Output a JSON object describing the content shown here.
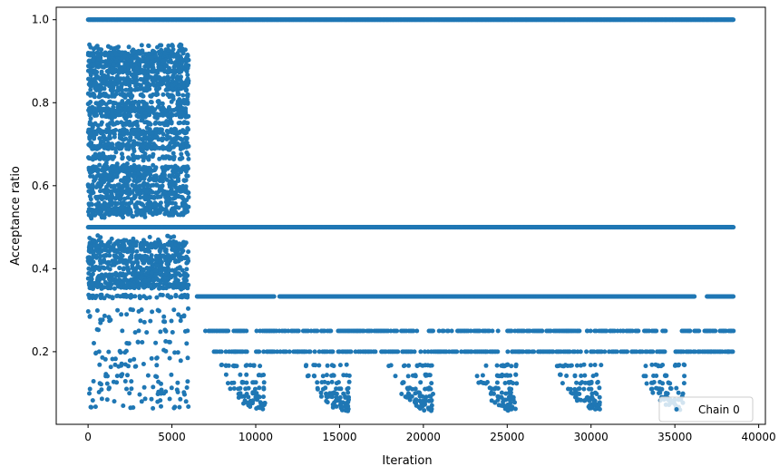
{
  "chart_data": {
    "type": "scatter",
    "title": "",
    "xlabel": "Iteration",
    "ylabel": "Acceptance ratio",
    "xlim": [
      -1900,
      40400
    ],
    "ylim": [
      0.025,
      1.03
    ],
    "x_ticks": [
      0,
      5000,
      10000,
      15000,
      20000,
      25000,
      30000,
      35000,
      40000
    ],
    "x_tick_labels": [
      "0",
      "5000",
      "10000",
      "15000",
      "20000",
      "25000",
      "30000",
      "35000",
      "40000"
    ],
    "y_ticks": [
      0.2,
      0.4,
      0.6,
      0.8,
      1.0
    ],
    "y_tick_labels": [
      "0.2",
      "0.4",
      "0.6",
      "0.8",
      "1.0"
    ],
    "grid": false,
    "legend_position": "bottom-right",
    "series": [
      {
        "name": "Chain 0",
        "color": "#1f77b4",
        "marker": "circle",
        "x_range": [
          0,
          38500
        ],
        "bands": [
          {
            "y": 1.0,
            "x_start": 0,
            "x_end": 38500,
            "density": "dense"
          },
          {
            "y": 0.5,
            "x_start": 0,
            "x_end": 38500,
            "density": "dense"
          },
          {
            "y": 0.333,
            "x_start": 6500,
            "x_end": 38500,
            "density": "dense",
            "gaps": [
              [
                11100,
                11400
              ],
              [
                36200,
                36900
              ]
            ]
          },
          {
            "y": 0.25,
            "x_start": 7000,
            "x_end": 38500,
            "density": "medium"
          },
          {
            "y": 0.2,
            "x_start": 7500,
            "x_end": 38500,
            "density": "medium"
          },
          {
            "y_range": [
              0.05,
              0.19
            ],
            "pattern": "periodic-dips",
            "dip_minima_x": [
              10500,
              15500,
              20500,
              25500,
              30500,
              35500
            ],
            "density": "sparse"
          }
        ],
        "burn_in": {
          "x_range": [
            0,
            6000
          ],
          "y_range": [
            0.06,
            0.94
          ],
          "density": "dense"
        }
      }
    ]
  }
}
